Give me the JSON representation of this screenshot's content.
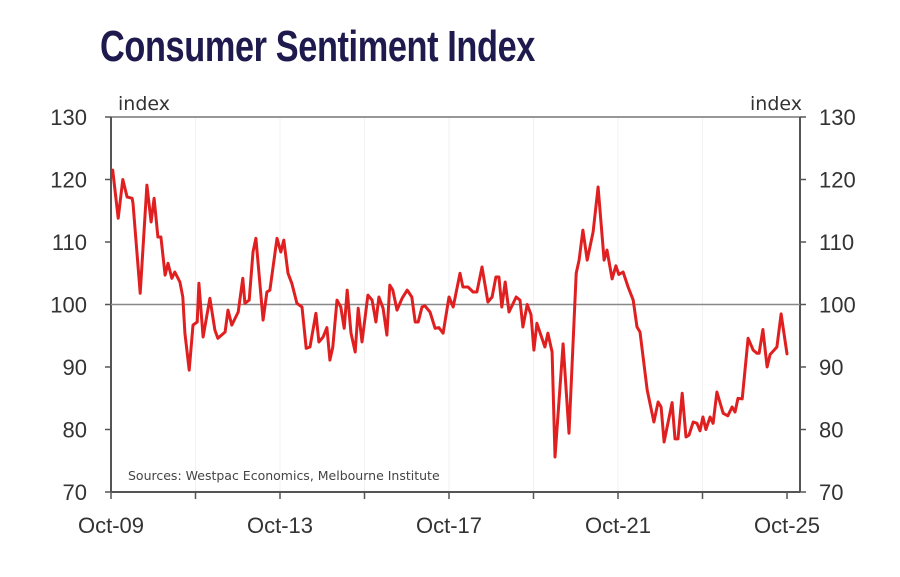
{
  "chart_data": {
    "type": "line",
    "title": "Consumer Sentiment Index",
    "ylabel_left": "index",
    "ylabel_right": "index",
    "source": "Sources: Westpac Economics, Melbourne Institute",
    "ylim": [
      70,
      130
    ],
    "yticks": [
      70,
      80,
      90,
      100,
      110,
      120,
      130
    ],
    "xlim": [
      2009.75,
      2025.75
    ],
    "xtick_labels": [
      {
        "label": "Oct-09",
        "x": 2009.75
      },
      {
        "label": "Oct-13",
        "x": 2013.75
      },
      {
        "label": "Oct-17",
        "x": 2017.75
      },
      {
        "label": "Oct-21",
        "x": 2021.75
      },
      {
        "label": "Oct-25",
        "x": 2025.75
      }
    ],
    "reference_line": 100,
    "line_color": "#e02020",
    "series": [
      {
        "name": "Consumer Sentiment Index",
        "points": [
          [
            2009.79,
            121.5
          ],
          [
            2009.92,
            113.8
          ],
          [
            2010.03,
            120
          ],
          [
            2010.13,
            117.2
          ],
          [
            2010.25,
            117
          ],
          [
            2010.27,
            116.2
          ],
          [
            2010.44,
            101.8
          ],
          [
            2010.6,
            119.1
          ],
          [
            2010.7,
            113.2
          ],
          [
            2010.77,
            117
          ],
          [
            2010.86,
            110.8
          ],
          [
            2010.93,
            110.8
          ],
          [
            2011.03,
            104.7
          ],
          [
            2011.1,
            106.6
          ],
          [
            2011.19,
            104.2
          ],
          [
            2011.26,
            105.2
          ],
          [
            2011.38,
            103.6
          ],
          [
            2011.45,
            101.2
          ],
          [
            2011.5,
            95.4
          ],
          [
            2011.6,
            89.5
          ],
          [
            2011.69,
            96.7
          ],
          [
            2011.79,
            97.2
          ],
          [
            2011.83,
            103.4
          ],
          [
            2011.93,
            94.8
          ],
          [
            2012.09,
            101
          ],
          [
            2012.21,
            95.9
          ],
          [
            2012.28,
            94.6
          ],
          [
            2012.45,
            95.6
          ],
          [
            2012.52,
            99.1
          ],
          [
            2012.61,
            96.7
          ],
          [
            2012.76,
            98.8
          ],
          [
            2012.87,
            104.2
          ],
          [
            2012.92,
            100.2
          ],
          [
            2013.02,
            100.7
          ],
          [
            2013.11,
            108.4
          ],
          [
            2013.18,
            110.6
          ],
          [
            2013.35,
            97.5
          ],
          [
            2013.44,
            102
          ],
          [
            2013.51,
            102.3
          ],
          [
            2013.68,
            110.6
          ],
          [
            2013.77,
            108.4
          ],
          [
            2013.84,
            110.3
          ],
          [
            2013.94,
            105
          ],
          [
            2014.03,
            103.4
          ],
          [
            2014.15,
            100.2
          ],
          [
            2014.27,
            99.6
          ],
          [
            2014.37,
            93
          ],
          [
            2014.46,
            93.2
          ],
          [
            2014.6,
            98.6
          ],
          [
            2014.67,
            94
          ],
          [
            2014.77,
            94.8
          ],
          [
            2014.86,
            96.3
          ],
          [
            2014.93,
            91.1
          ],
          [
            2015.0,
            93.2
          ],
          [
            2015.1,
            100.7
          ],
          [
            2015.19,
            99.6
          ],
          [
            2015.27,
            96.2
          ],
          [
            2015.34,
            102.3
          ],
          [
            2015.43,
            95.4
          ],
          [
            2015.53,
            92.4
          ],
          [
            2015.6,
            99.4
          ],
          [
            2015.69,
            94
          ],
          [
            2015.83,
            101.5
          ],
          [
            2015.93,
            100.7
          ],
          [
            2016.02,
            97.2
          ],
          [
            2016.09,
            101.2
          ],
          [
            2016.19,
            99.4
          ],
          [
            2016.28,
            95.1
          ],
          [
            2016.35,
            103.1
          ],
          [
            2016.42,
            102.3
          ],
          [
            2016.52,
            99.1
          ],
          [
            2016.64,
            101
          ],
          [
            2016.76,
            102.3
          ],
          [
            2016.87,
            101.2
          ],
          [
            2016.95,
            97.2
          ],
          [
            2017.02,
            97.2
          ],
          [
            2017.11,
            99.6
          ],
          [
            2017.18,
            99.8
          ],
          [
            2017.3,
            98.8
          ],
          [
            2017.42,
            96.2
          ],
          [
            2017.51,
            96.3
          ],
          [
            2017.61,
            95.4
          ],
          [
            2017.75,
            101.2
          ],
          [
            2017.85,
            99.6
          ],
          [
            2018.01,
            105
          ],
          [
            2018.08,
            102.8
          ],
          [
            2018.2,
            102.8
          ],
          [
            2018.32,
            102
          ],
          [
            2018.41,
            102
          ],
          [
            2018.53,
            106
          ],
          [
            2018.67,
            100.4
          ],
          [
            2018.77,
            101.2
          ],
          [
            2018.86,
            104.4
          ],
          [
            2018.93,
            104.4
          ],
          [
            2019.0,
            99.6
          ],
          [
            2019.08,
            103.6
          ],
          [
            2019.17,
            98.8
          ],
          [
            2019.34,
            101.2
          ],
          [
            2019.43,
            100.7
          ],
          [
            2019.5,
            96.4
          ],
          [
            2019.6,
            100
          ],
          [
            2019.69,
            98.4
          ],
          [
            2019.76,
            92.7
          ],
          [
            2019.83,
            97
          ],
          [
            2020.02,
            93.2
          ],
          [
            2020.09,
            95.4
          ],
          [
            2020.19,
            92.4
          ],
          [
            2020.26,
            75.6
          ],
          [
            2020.45,
            93.7
          ],
          [
            2020.59,
            79.4
          ],
          [
            2020.76,
            105
          ],
          [
            2020.83,
            107.1
          ],
          [
            2020.92,
            111.9
          ],
          [
            2021.02,
            107.1
          ],
          [
            2021.16,
            111.6
          ],
          [
            2021.28,
            118.8
          ],
          [
            2021.42,
            107.1
          ],
          [
            2021.49,
            108.7
          ],
          [
            2021.61,
            104.1
          ],
          [
            2021.7,
            106.2
          ],
          [
            2021.77,
            104.8
          ],
          [
            2021.87,
            105.2
          ],
          [
            2021.99,
            102.8
          ],
          [
            2022.11,
            100.7
          ],
          [
            2022.2,
            96.4
          ],
          [
            2022.27,
            95.6
          ],
          [
            2022.44,
            86.3
          ],
          [
            2022.6,
            81.2
          ],
          [
            2022.7,
            84.4
          ],
          [
            2022.77,
            83.6
          ],
          [
            2022.84,
            78
          ],
          [
            2023.03,
            84.3
          ],
          [
            2023.1,
            78.5
          ],
          [
            2023.17,
            78.5
          ],
          [
            2023.27,
            85.8
          ],
          [
            2023.36,
            78.8
          ],
          [
            2023.43,
            79.1
          ],
          [
            2023.53,
            81.2
          ],
          [
            2023.62,
            81
          ],
          [
            2023.69,
            79.8
          ],
          [
            2023.76,
            82
          ],
          [
            2023.83,
            80
          ],
          [
            2023.93,
            82
          ],
          [
            2024.0,
            81
          ],
          [
            2024.09,
            86
          ],
          [
            2024.24,
            82.6
          ],
          [
            2024.35,
            82.2
          ],
          [
            2024.45,
            83.6
          ],
          [
            2024.52,
            82.8
          ],
          [
            2024.59,
            85
          ],
          [
            2024.69,
            84.9
          ],
          [
            2024.83,
            94.6
          ],
          [
            2024.95,
            92.7
          ],
          [
            2025.04,
            92.2
          ],
          [
            2025.09,
            92.2
          ],
          [
            2025.18,
            96
          ],
          [
            2025.28,
            90
          ],
          [
            2025.35,
            92
          ],
          [
            2025.51,
            93.2
          ],
          [
            2025.61,
            98.5
          ],
          [
            2025.75,
            92.1
          ]
        ]
      }
    ]
  }
}
